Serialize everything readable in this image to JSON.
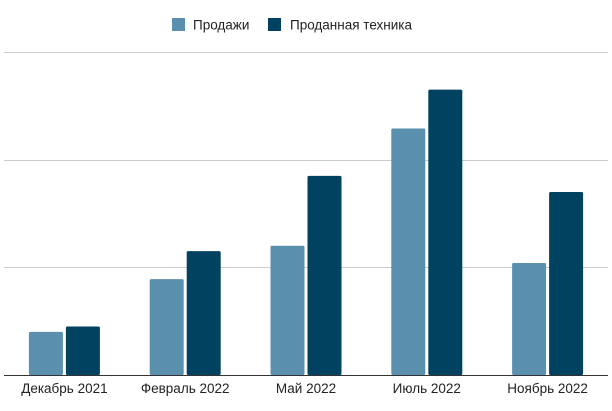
{
  "chart_data": {
    "type": "bar",
    "categories": [
      "Декабрь 2021",
      "Февраль 2022",
      "Май 2022",
      "Июль 2022",
      "Ноябрь 2022"
    ],
    "series": [
      {
        "name": "Продажи",
        "color": "#5b8fae",
        "values": [
          0.4,
          0.89,
          1.2,
          2.29,
          1.04
        ]
      },
      {
        "name": "Проданная техника",
        "color": "#00425f",
        "values": [
          0.45,
          1.15,
          1.85,
          2.65,
          1.7
        ]
      }
    ],
    "ylim": [
      0,
      3
    ],
    "y_tick_labels_shown": false,
    "grid": true,
    "legend_position": "top-center",
    "title": "",
    "xlabel": "",
    "ylabel": ""
  }
}
